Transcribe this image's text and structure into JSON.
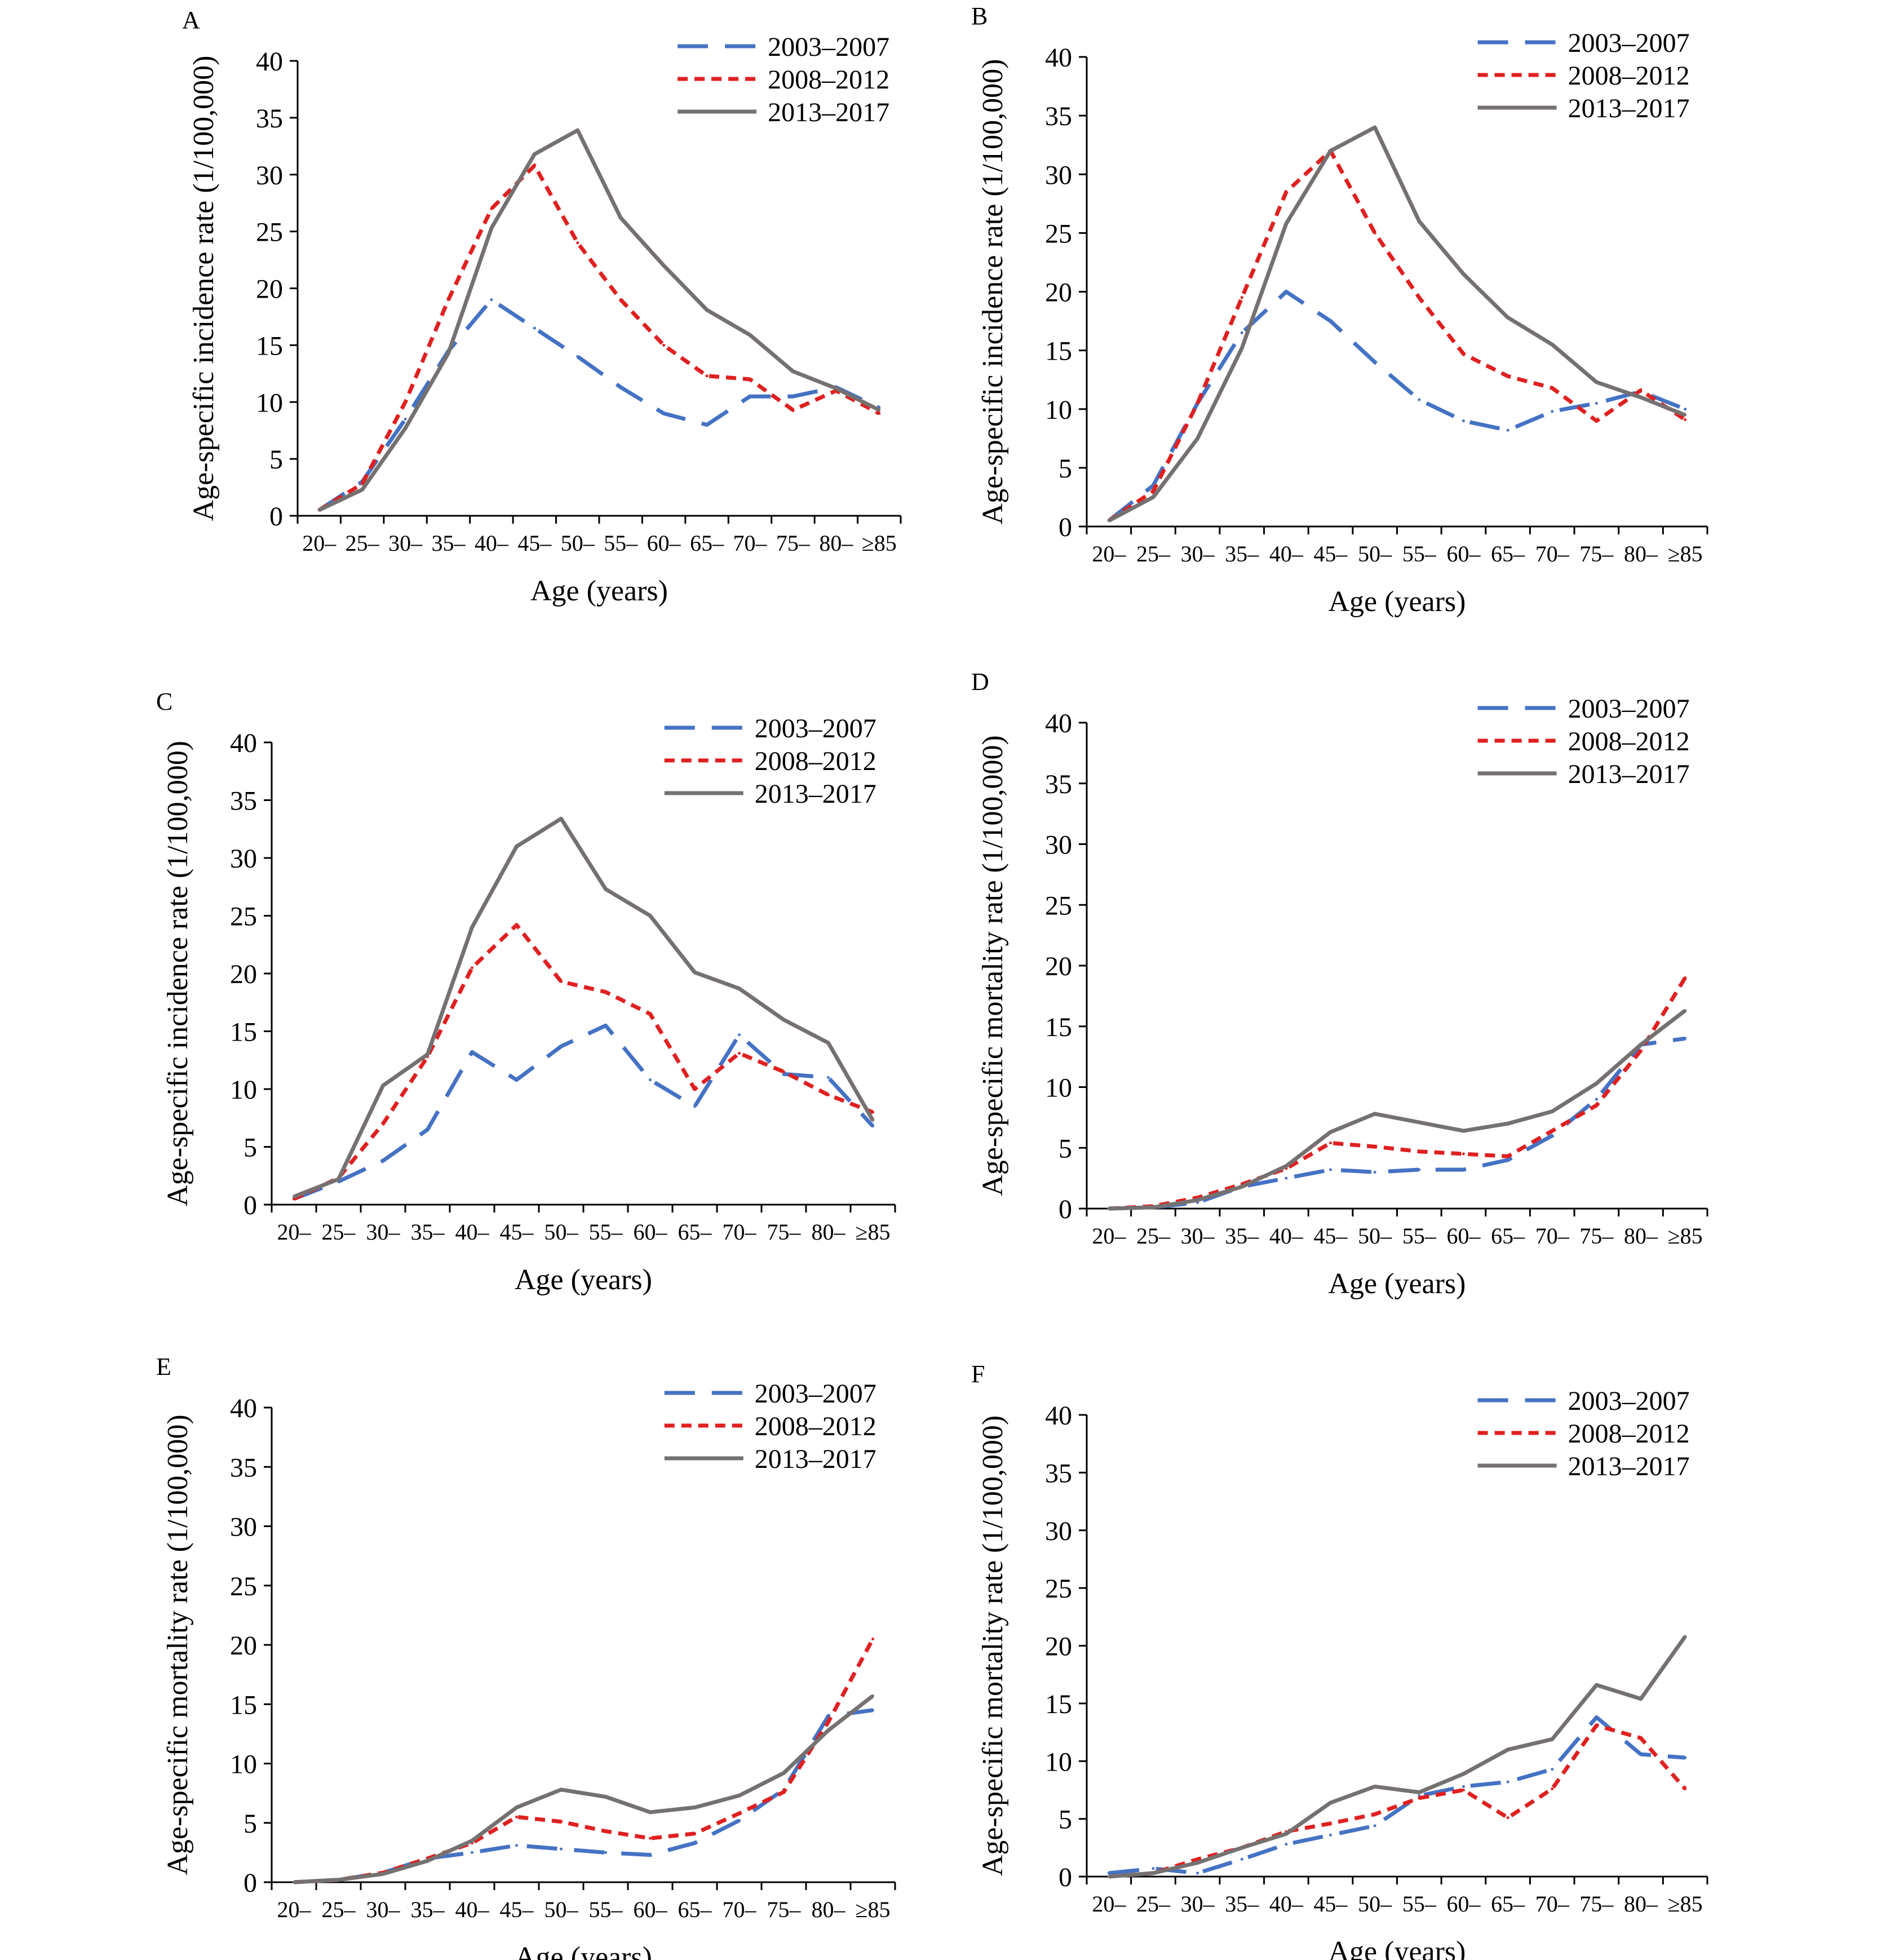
{
  "figure": {
    "categories": [
      "20–",
      "25–",
      "30–",
      "35–",
      "40–",
      "45–",
      "50–",
      "55–",
      "60–",
      "65–",
      "70–",
      "75–",
      "80–",
      "≥85"
    ],
    "xlabel": "Age (years)",
    "ylim": [
      0,
      40
    ],
    "yticks": [
      0,
      5,
      10,
      15,
      20,
      25,
      30,
      35,
      40
    ],
    "legend_position": "top-right",
    "series_styles": [
      {
        "name": "2003–2007",
        "color": "#4472C4",
        "dash": "long-dash"
      },
      {
        "name": "2008–2012",
        "color": "#E02020",
        "dash": "short-dash"
      },
      {
        "name": "2013–2017",
        "color": "#767171",
        "dash": "solid"
      }
    ]
  },
  "chart_data": [
    {
      "panel": "A",
      "type": "line",
      "ylabel": "Age-specific incidence rate (1/100,000)",
      "xlabel": "Age (years)",
      "categories": [
        "20–",
        "25–",
        "30–",
        "35–",
        "40–",
        "45–",
        "50–",
        "55–",
        "60–",
        "65–",
        "70–",
        "75–",
        "80–",
        "≥85"
      ],
      "ylim": [
        0,
        40
      ],
      "series": [
        {
          "name": "2003–2007",
          "values": [
            0.5,
            3.0,
            8.5,
            14.5,
            19.0,
            16.5,
            14.0,
            11.3,
            9.0,
            8.0,
            10.5,
            10.5,
            11.3,
            9.5
          ]
        },
        {
          "name": "2008–2012",
          "values": [
            0.5,
            2.8,
            10.0,
            19.0,
            27.0,
            30.8,
            24.0,
            19.0,
            15.0,
            12.3,
            12.0,
            9.3,
            11.0,
            9.0
          ]
        },
        {
          "name": "2013–2017",
          "values": [
            0.5,
            2.3,
            7.7,
            14.3,
            25.3,
            31.8,
            33.9,
            26.2,
            22.0,
            18.1,
            15.9,
            12.7,
            11.2,
            9.3
          ]
        }
      ]
    },
    {
      "panel": "B",
      "type": "line",
      "ylabel": "Age-specific incidence rate (1/100,000)",
      "xlabel": "Age (years)",
      "categories": [
        "20–",
        "25–",
        "30–",
        "35–",
        "40–",
        "45–",
        "50–",
        "55–",
        "60–",
        "65–",
        "70–",
        "75–",
        "80–",
        "≥85"
      ],
      "ylim": [
        0,
        40
      ],
      "series": [
        {
          "name": "2003–2007",
          "values": [
            0.5,
            3.5,
            10.5,
            16.5,
            20.0,
            17.5,
            14.0,
            10.8,
            9.0,
            8.2,
            9.8,
            10.5,
            11.5,
            10.0
          ]
        },
        {
          "name": "2008–2012",
          "values": [
            0.5,
            3.0,
            10.5,
            19.5,
            28.5,
            32.0,
            25.0,
            19.5,
            14.7,
            12.8,
            11.8,
            9.0,
            11.6,
            9.1
          ]
        },
        {
          "name": "2013–2017",
          "values": [
            0.5,
            2.5,
            7.5,
            15.2,
            25.8,
            32.0,
            34.0,
            26.0,
            21.5,
            17.8,
            15.5,
            12.3,
            11.0,
            9.5
          ]
        }
      ]
    },
    {
      "panel": "C",
      "type": "line",
      "ylabel": "Age-specific incidence rate (1/100,000)",
      "xlabel": "Age (years)",
      "categories": [
        "20–",
        "25–",
        "30–",
        "35–",
        "40–",
        "45–",
        "50–",
        "55–",
        "60–",
        "65–",
        "70–",
        "75–",
        "80–",
        "≥85"
      ],
      "ylim": [
        0,
        40
      ],
      "series": [
        {
          "name": "2003–2007",
          "values": [
            0.5,
            2.0,
            3.8,
            6.5,
            13.2,
            10.8,
            13.7,
            15.5,
            10.8,
            8.5,
            14.7,
            11.3,
            11.0,
            6.8
          ]
        },
        {
          "name": "2008–2012",
          "values": [
            0.5,
            2.3,
            7.0,
            12.8,
            20.5,
            24.2,
            19.3,
            18.4,
            16.5,
            10.0,
            13.1,
            11.5,
            9.5,
            8.0
          ]
        },
        {
          "name": "2013–2017",
          "values": [
            0.7,
            2.2,
            10.3,
            13.0,
            24.0,
            31.0,
            33.4,
            27.3,
            25.0,
            20.1,
            18.7,
            16.0,
            14.0,
            7.3
          ]
        }
      ]
    },
    {
      "panel": "D",
      "type": "line",
      "ylabel": "Age-specific mortality rate (1/100,000)",
      "xlabel": "Age (years)",
      "categories": [
        "20–",
        "25–",
        "30–",
        "35–",
        "40–",
        "45–",
        "50–",
        "55–",
        "60–",
        "65–",
        "70–",
        "75–",
        "80–",
        "≥85"
      ],
      "ylim": [
        0,
        40
      ],
      "series": [
        {
          "name": "2003–2007",
          "values": [
            0.0,
            0.1,
            0.5,
            1.8,
            2.5,
            3.2,
            3.0,
            3.2,
            3.2,
            4.0,
            6.0,
            9.0,
            13.5,
            14.0
          ]
        },
        {
          "name": "2008–2012",
          "values": [
            0.0,
            0.2,
            0.9,
            2.0,
            3.3,
            5.4,
            5.1,
            4.7,
            4.5,
            4.3,
            6.4,
            8.5,
            13.0,
            19.0
          ]
        },
        {
          "name": "2013–2017",
          "values": [
            0.0,
            0.1,
            0.7,
            1.8,
            3.5,
            6.3,
            7.8,
            7.1,
            6.4,
            7.0,
            8.0,
            10.3,
            13.5,
            16.3
          ]
        }
      ]
    },
    {
      "panel": "E",
      "type": "line",
      "ylabel": "Age-specific mortality rate (1/100,000)",
      "xlabel": "Age (years)",
      "categories": [
        "20–",
        "25–",
        "30–",
        "35–",
        "40–",
        "45–",
        "50–",
        "55–",
        "60–",
        "65–",
        "70–",
        "75–",
        "80–",
        "≥85"
      ],
      "ylim": [
        0,
        40
      ],
      "series": [
        {
          "name": "2003–2007",
          "values": [
            0.0,
            0.2,
            0.8,
            2.0,
            2.5,
            3.1,
            2.8,
            2.5,
            2.3,
            3.3,
            5.2,
            7.8,
            14.0,
            14.5
          ]
        },
        {
          "name": "2008–2012",
          "values": [
            0.0,
            0.2,
            0.8,
            2.0,
            3.3,
            5.5,
            5.1,
            4.3,
            3.7,
            4.1,
            5.8,
            7.6,
            13.5,
            20.5
          ]
        },
        {
          "name": "2013–2017",
          "values": [
            0.0,
            0.2,
            0.7,
            1.8,
            3.5,
            6.3,
            7.8,
            7.2,
            5.9,
            6.3,
            7.3,
            9.2,
            12.8,
            15.7
          ]
        }
      ]
    },
    {
      "panel": "F",
      "type": "line",
      "ylabel": "Age-specific mortality rate (1/100,000)",
      "xlabel": "Age (years)",
      "categories": [
        "20–",
        "25–",
        "30–",
        "35–",
        "40–",
        "45–",
        "50–",
        "55–",
        "60–",
        "65–",
        "70–",
        "75–",
        "80–",
        "≥85"
      ],
      "ylim": [
        0,
        40
      ],
      "series": [
        {
          "name": "2003–2007",
          "values": [
            0.3,
            0.7,
            0.3,
            1.5,
            2.8,
            3.6,
            4.4,
            7.0,
            7.8,
            8.2,
            9.3,
            13.8,
            10.6,
            10.3
          ]
        },
        {
          "name": "2008–2012",
          "values": [
            0.0,
            0.3,
            1.5,
            2.5,
            3.9,
            4.6,
            5.4,
            6.8,
            7.5,
            5.1,
            7.6,
            13.1,
            12.0,
            7.6
          ]
        },
        {
          "name": "2013–2017",
          "values": [
            0.0,
            0.3,
            1.2,
            2.5,
            3.7,
            6.4,
            7.8,
            7.3,
            8.9,
            11.0,
            11.9,
            16.6,
            15.4,
            20.8
          ]
        }
      ]
    }
  ]
}
